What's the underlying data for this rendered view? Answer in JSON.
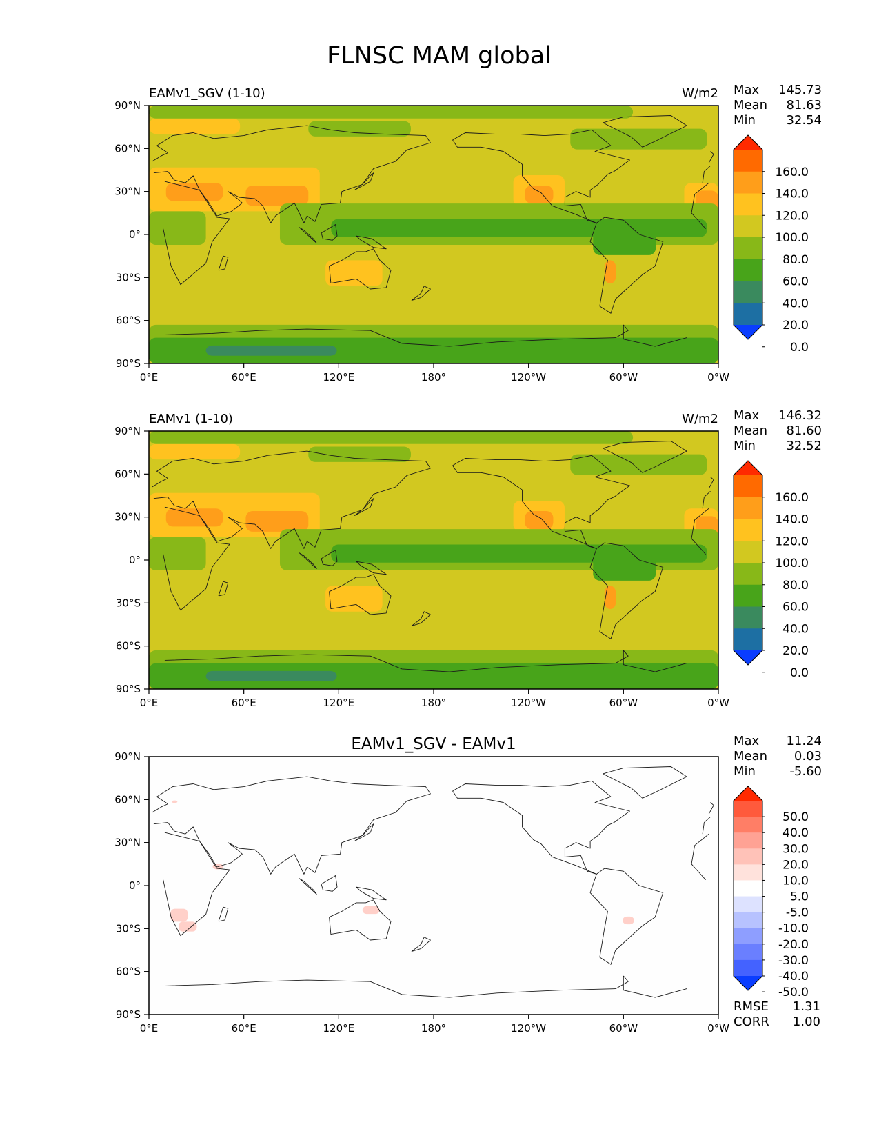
{
  "figure": {
    "title": "FLNSC MAM global",
    "lon_ticks": [
      "0°E",
      "60°E",
      "120°E",
      "180°",
      "120°W",
      "60°W",
      "0°W"
    ],
    "lat_ticks": [
      "90°N",
      "60°N",
      "30°N",
      "0°",
      "30°S",
      "60°S",
      "90°S"
    ]
  },
  "panels": [
    {
      "id": "test",
      "title_left": "EAMv1_SGV (1-10)",
      "title_center": "",
      "units": "W/m2",
      "stats": [
        {
          "label": "Max",
          "value": "145.73"
        },
        {
          "label": "Mean",
          "value": "81.63"
        },
        {
          "label": "Min",
          "value": "32.54"
        }
      ],
      "colorbar": {
        "labels": [
          "160.0",
          "140.0",
          "120.0",
          "100.0",
          "80.0",
          "60.0",
          "40.0",
          "20.0",
          "0.0"
        ],
        "colors": [
          "#ff2a00",
          "#ff6a00",
          "#ff9e1a",
          "#ffc21f",
          "#d2c820",
          "#88b818",
          "#48a41a",
          "#3a8a5e",
          "#1d6fa3",
          "#0a3dff"
        ]
      }
    },
    {
      "id": "ref",
      "title_left": "EAMv1 (1-10)",
      "title_center": "",
      "units": "W/m2",
      "stats": [
        {
          "label": "Max",
          "value": "146.32"
        },
        {
          "label": "Mean",
          "value": "81.60"
        },
        {
          "label": "Min",
          "value": "32.52"
        }
      ],
      "colorbar": {
        "labels": [
          "160.0",
          "140.0",
          "120.0",
          "100.0",
          "80.0",
          "60.0",
          "40.0",
          "20.0",
          "0.0"
        ],
        "colors": [
          "#ff2a00",
          "#ff6a00",
          "#ff9e1a",
          "#ffc21f",
          "#d2c820",
          "#88b818",
          "#48a41a",
          "#3a8a5e",
          "#1d6fa3",
          "#0a3dff"
        ]
      }
    },
    {
      "id": "diff",
      "title_left": "",
      "title_center": "EAMv1_SGV - EAMv1",
      "units": "",
      "stats": [
        {
          "label": "Max",
          "value": "11.24"
        },
        {
          "label": "Mean",
          "value": "0.03"
        },
        {
          "label": "Min",
          "value": "-5.60"
        }
      ],
      "colorbar": {
        "labels": [
          "50.0",
          "40.0",
          "30.0",
          "20.0",
          "10.0",
          "5.0",
          "-5.0",
          "-10.0",
          "-20.0",
          "-30.0",
          "-40.0",
          "-50.0"
        ],
        "colors": [
          "#ff2a00",
          "#ff5a3c",
          "#ff7e66",
          "#ffa294",
          "#ffc2b8",
          "#ffe2dc",
          "#ffffff",
          "#dde2ff",
          "#b7c2ff",
          "#8e9eff",
          "#6a7fff",
          "#4462ff",
          "#0a3dff"
        ]
      },
      "extra": [
        {
          "label": "RMSE",
          "value": "1.31"
        },
        {
          "label": "CORR",
          "value": "1.00"
        }
      ]
    }
  ]
}
